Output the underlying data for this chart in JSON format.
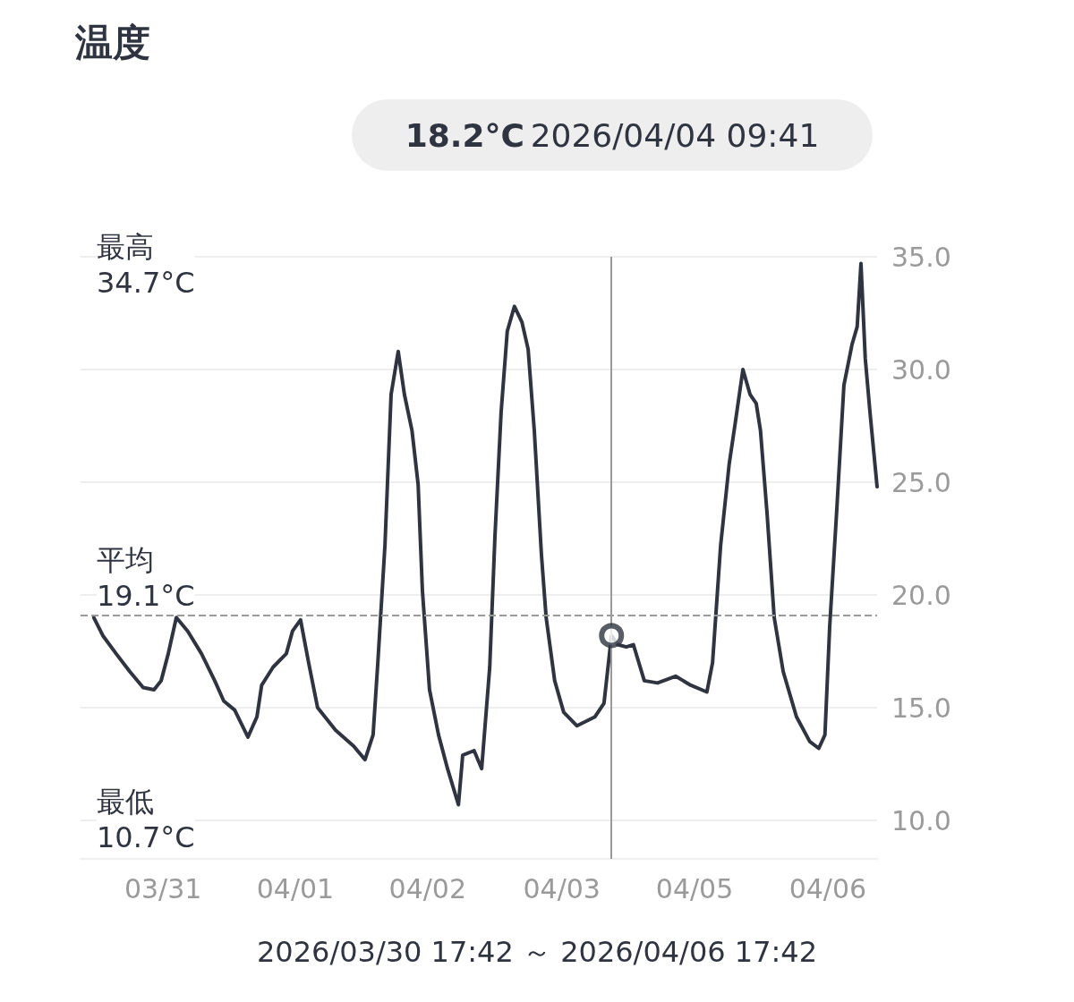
{
  "chart_data": {
    "type": "line",
    "title": "温度",
    "xlabel": "2026/03/30 17:42 ～ 2026/04/06 17:42",
    "x": [
      "2026-03-30T20:30",
      "2026-03-30T22:24",
      "2026-03-31T01:12",
      "2026-03-31T04:06",
      "2026-03-31T06:54",
      "2026-03-31T09:12",
      "2026-03-31T10:42",
      "2026-03-31T12:12",
      "2026-03-31T13:54",
      "2026-03-31T16:18",
      "2026-03-31T19:12",
      "2026-03-31T22:00",
      "2026-03-31T23:54",
      "2026-04-01T02:12",
      "2026-04-01T05:00",
      "2026-04-01T06:54",
      "2026-04-01T07:54",
      "2026-04-01T10:18",
      "2026-04-01T13:06",
      "2026-04-01T14:24",
      "2026-04-01T16:06",
      "2026-04-01T17:48",
      "2026-04-01T19:42",
      "2026-04-01T23:30",
      "2026-04-02T03:18",
      "2026-04-02T05:42",
      "2026-04-02T07:24",
      "2026-04-02T08:24",
      "2026-04-02T09:54",
      "2026-04-02T11:12",
      "2026-04-02T12:42",
      "2026-04-02T14:00",
      "2026-04-02T15:36",
      "2026-04-02T16:54",
      "2026-04-02T17:48",
      "2026-04-02T19:18",
      "2026-04-02T21:12",
      "2026-04-02T23:06",
      "2026-04-03T01:24",
      "2026-04-03T02:18",
      "2026-04-03T04:42",
      "2026-04-03T06:18",
      "2026-04-03T08:00",
      "2026-04-03T09:06",
      "2026-04-03T10:24",
      "2026-04-03T11:42",
      "2026-04-03T13:12",
      "2026-04-03T14:48",
      "2026-04-03T16:06",
      "2026-04-03T17:24",
      "2026-04-03T18:54",
      "2026-04-03T19:54",
      "2026-04-03T21:42",
      "2026-04-03T23:36",
      "2026-04-04T02:24",
      "2026-04-04T06:12",
      "2026-04-04T08:06",
      "2026-04-04T09:41",
      "2026-04-04T11:00",
      "2026-04-04T12:48",
      "2026-04-04T14:18",
      "2026-04-04T16:36",
      "2026-04-04T19:24",
      "2026-04-04T23:12",
      "2026-04-05T02:24",
      "2026-04-05T05:48",
      "2026-04-05T07:00",
      "2026-04-05T08:42",
      "2026-04-05T10:30",
      "2026-04-05T11:54",
      "2026-04-05T13:24",
      "2026-04-05T14:54",
      "2026-04-05T16:12",
      "2026-04-05T17:06",
      "2026-04-05T18:30",
      "2026-04-05T20:00",
      "2026-04-05T21:54",
      "2026-04-06T00:42",
      "2026-04-06T03:30",
      "2026-04-06T05:24",
      "2026-04-06T06:42",
      "2026-04-06T07:42",
      "2026-04-06T09:12",
      "2026-04-06T10:42",
      "2026-04-06T12:24",
      "2026-04-06T13:30",
      "2026-04-06T14:18",
      "2026-04-06T15:12",
      "2026-04-06T16:12",
      "2026-04-06T17:42"
    ],
    "series": [
      {
        "color": "#2f3440",
        "values": [
          19.0,
          18.2,
          17.4,
          16.6,
          15.9,
          15.8,
          16.2,
          17.4,
          19.0,
          18.4,
          17.4,
          16.2,
          15.3,
          14.9,
          13.7,
          14.6,
          16.0,
          16.8,
          17.4,
          18.4,
          18.9,
          17.0,
          15.0,
          14.0,
          13.3,
          12.7,
          13.8,
          17.0,
          22.2,
          28.9,
          30.8,
          28.9,
          27.3,
          24.9,
          20.2,
          15.8,
          13.8,
          12.3,
          10.7,
          12.9,
          13.1,
          12.3,
          16.8,
          22.6,
          28.1,
          31.7,
          32.8,
          32.1,
          30.9,
          27.3,
          21.8,
          19.0,
          16.2,
          14.8,
          14.2,
          14.6,
          15.2,
          18.2,
          17.8,
          17.7,
          17.8,
          16.2,
          16.1,
          16.4,
          16.0,
          15.7,
          17.0,
          22.2,
          25.8,
          27.8,
          30.0,
          28.9,
          28.5,
          27.3,
          23.6,
          19.0,
          16.6,
          14.6,
          13.5,
          13.2,
          13.8,
          18.6,
          23.8,
          29.3,
          31.1,
          31.9,
          34.7,
          30.5,
          28.1,
          24.8
        ]
      }
    ],
    "xlim": [
      "2026-03-30T17:42",
      "2026-04-06T17:42"
    ],
    "xticks": [
      {
        "value": "2026-03-31T11:06",
        "label": "03/31"
      },
      {
        "value": "2026-04-01T15:00",
        "label": "04/01"
      },
      {
        "value": "2026-04-02T18:54",
        "label": "04/02"
      },
      {
        "value": "2026-04-03T23:12",
        "label": "04/03"
      },
      {
        "value": "2026-04-05T03:12",
        "label": "04/05"
      },
      {
        "value": "2026-04-06T07:18",
        "label": "04/06"
      }
    ],
    "ylim": [
      8.3,
      35
    ],
    "yticks": [
      {
        "value": 10,
        "label": "10.0"
      },
      {
        "value": 15,
        "label": "15.0"
      },
      {
        "value": 20,
        "label": "20.0"
      },
      {
        "value": 25,
        "label": "25.0"
      },
      {
        "value": 30,
        "label": "30.0"
      },
      {
        "value": 35,
        "label": "35.0"
      }
    ],
    "grid": "y",
    "line_style": "solid",
    "ref_lines": [
      {
        "axis": "y",
        "value": 19.1,
        "label": "平均\n19.1°C",
        "color": "#999999",
        "line_style": "dashed"
      },
      {
        "axis": "x",
        "value": "2026-04-04T09:41",
        "label": null,
        "color": "#999999",
        "line_style": "solid"
      }
    ],
    "annotations": [
      "18.2°C",
      "2026/04/04 09:41",
      "最高\n34.7°C",
      "最低\n10.7°C"
    ]
  }
}
